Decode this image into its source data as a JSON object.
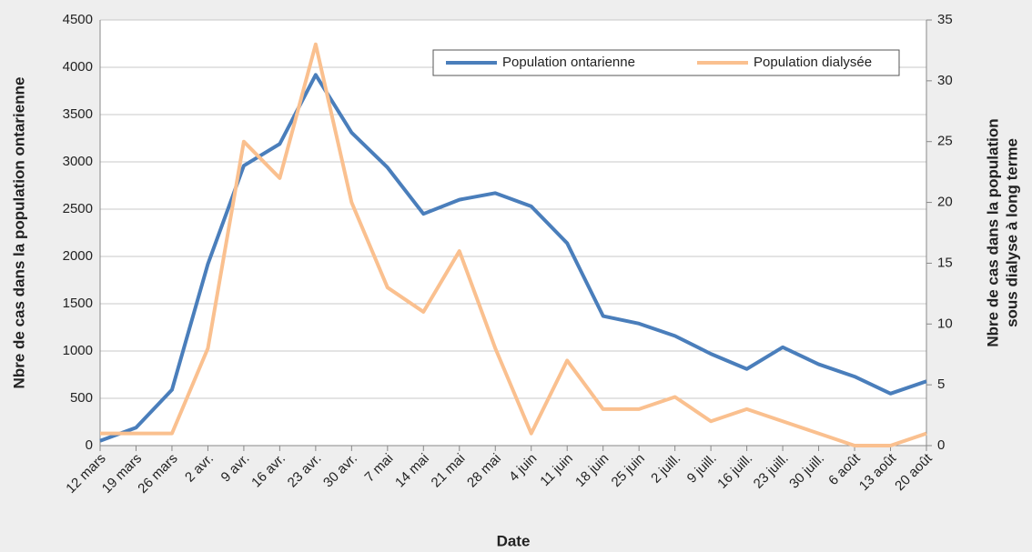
{
  "chart_data": {
    "type": "line",
    "x_label": "Date",
    "y_label": "Nbre de cas dans la population ontarienne",
    "y2_label": [
      "Nbre de cas dans la population",
      "sous dialyse à long terme"
    ],
    "categories": [
      "12 mars",
      "19 mars",
      "26 mars",
      "2 avr.",
      "9 avr.",
      "16 avr.",
      "23 avr.",
      "30 avr.",
      "7 mai",
      "14 mai",
      "21 mai",
      "28 mai",
      "4 juin",
      "11 juin",
      "18 juin",
      "25 juin",
      "2 juill.",
      "9 juill.",
      "16 juill.",
      "23 juill.",
      "30 juill.",
      "6 août",
      "13 août",
      "20 août"
    ],
    "series": [
      {
        "name": "Population ontarienne",
        "color": "#4a7ebb",
        "values": [
          50,
          190,
          590,
          1920,
          2960,
          3190,
          3920,
          3310,
          2940,
          2450,
          2600,
          2670,
          2530,
          2140,
          1370,
          1290,
          1160,
          970,
          810,
          1040,
          860,
          730,
          550,
          680
        ]
      },
      {
        "name": "Population dialysée",
        "color": "#fac08f",
        "axis": "y2",
        "values": [
          1,
          1,
          1,
          8,
          25,
          22,
          33,
          20,
          13,
          11,
          16,
          8,
          1,
          7,
          3,
          3,
          4,
          2,
          3,
          2,
          1,
          0,
          0,
          1
        ]
      }
    ],
    "ylim": [
      0,
      4500
    ],
    "yticks": [
      0,
      500,
      1000,
      1500,
      2000,
      2500,
      3000,
      3500,
      4000,
      4500
    ],
    "y2lim": [
      0,
      35
    ],
    "y2ticks": [
      0,
      5,
      10,
      15,
      20,
      25,
      30,
      35
    ],
    "grid": true,
    "legend": "top-right"
  }
}
